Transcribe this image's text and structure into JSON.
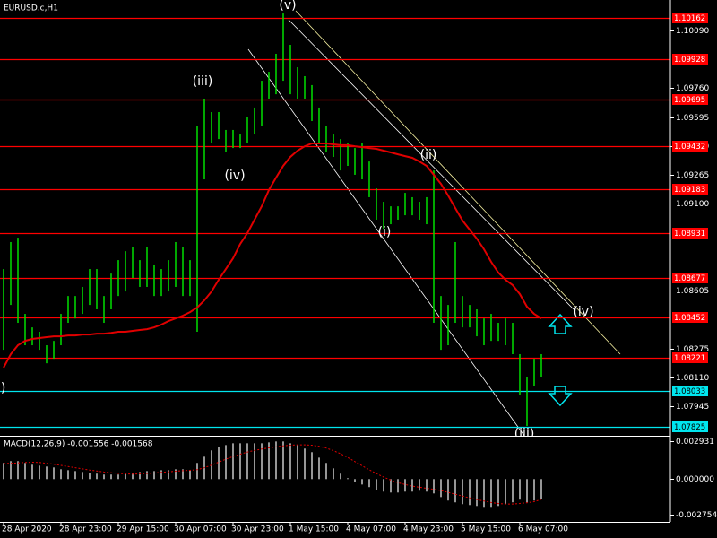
{
  "chart_data": [
    {
      "type": "hilo",
      "title": "EURUSD.c,H1",
      "color": "#00e000",
      "categories": [
        "28 Apr 2020",
        null,
        null,
        null,
        null,
        null,
        null,
        null,
        "28 Apr 23:00",
        null,
        null,
        null,
        null,
        null,
        null,
        null,
        "29 Apr 15:00",
        null,
        null,
        null,
        null,
        null,
        null,
        null,
        "30 Apr 07:00",
        null,
        null,
        null,
        null,
        null,
        null,
        null,
        "30 Apr 23:00",
        null,
        null,
        null,
        null,
        null,
        null,
        null,
        "1 May 15:00",
        null,
        null,
        null,
        null,
        null,
        null,
        null,
        "4 May 07:00",
        null,
        null,
        null,
        null,
        null,
        null,
        null,
        "4 May 23:00",
        null,
        null,
        null,
        null,
        null,
        null,
        null,
        "5 May 15:00",
        null,
        null,
        null,
        null,
        null,
        null,
        null,
        "6 May 07:00",
        null,
        null,
        null
      ],
      "high": [
        1.08728,
        1.08882,
        1.08907,
        1.08472,
        1.08395,
        1.0837,
        1.08293,
        1.08318,
        1.08472,
        1.08574,
        1.08574,
        1.08626,
        1.08728,
        1.08728,
        1.08574,
        1.08702,
        1.08779,
        1.0883,
        1.08856,
        1.08779,
        1.08856,
        1.08754,
        1.08728,
        1.08779,
        1.08882,
        1.08856,
        1.08779,
        1.09547,
        1.09701,
        1.09624,
        1.09624,
        1.09522,
        1.09522,
        1.09496,
        1.09598,
        1.0965,
        1.09803,
        1.09854,
        1.09957,
        1.10187,
        1.10008,
        1.0988,
        1.09829,
        1.09778,
        1.0965,
        1.09547,
        1.09496,
        1.0947,
        1.09445,
        1.09419,
        1.09445,
        1.09342,
        1.09189,
        1.09112,
        1.09086,
        1.09086,
        1.09163,
        1.09138,
        1.09112,
        1.09138,
        1.09291,
        1.08574,
        1.08523,
        1.08882,
        1.08574,
        1.08523,
        1.08498,
        1.08446,
        1.08472,
        1.08421,
        1.08446,
        1.08421,
        1.08242,
        1.08114,
        1.08216,
        1.08242
      ],
      "low": [
        1.08267,
        1.08523,
        1.08421,
        1.08293,
        1.08293,
        1.08267,
        1.0819,
        1.08216,
        1.08293,
        1.08421,
        1.08446,
        1.08472,
        1.08523,
        1.08498,
        1.08421,
        1.08498,
        1.08574,
        1.086,
        1.08677,
        1.08626,
        1.08626,
        1.08574,
        1.08574,
        1.086,
        1.08626,
        1.08574,
        1.08574,
        1.0837,
        1.0924,
        1.09445,
        1.0947,
        1.09394,
        1.09419,
        1.09419,
        1.09445,
        1.09496,
        1.09547,
        1.09701,
        1.09726,
        1.09803,
        1.09726,
        1.09701,
        1.09701,
        1.09573,
        1.09445,
        1.09394,
        1.09368,
        1.09291,
        1.09317,
        1.09266,
        1.0924,
        1.09138,
        1.0901,
        1.08958,
        1.08984,
        1.0901,
        1.09035,
        1.09035,
        1.0901,
        1.08984,
        1.08421,
        1.08267,
        1.08293,
        1.08421,
        1.08395,
        1.08395,
        1.08344,
        1.08293,
        1.08318,
        1.08318,
        1.08293,
        1.08242,
        1.08011,
        1.07832,
        1.08062,
        1.08114
      ],
      "lines": [
        {
          "color": "#e00000",
          "values": [
            1.08165,
            1.08242,
            1.08293,
            1.08318,
            1.08329,
            1.08334,
            1.08339,
            1.08344,
            1.08344,
            1.08349,
            1.08349,
            1.08354,
            1.08354,
            1.08359,
            1.08359,
            1.08364,
            1.0837,
            1.0837,
            1.08375,
            1.0838,
            1.08385,
            1.08395,
            1.08411,
            1.08431,
            1.08446,
            1.08462,
            1.08482,
            1.08508,
            1.08549,
            1.086,
            1.08667,
            1.08728,
            1.08789,
            1.08871,
            1.08933,
            1.0901,
            1.09086,
            1.09179,
            1.0925,
            1.09317,
            1.09368,
            1.09404,
            1.09429,
            1.09445,
            1.09445,
            1.09445,
            1.0944,
            1.09435,
            1.09435,
            1.09429,
            1.09424,
            1.09419,
            1.09414,
            1.09404,
            1.09394,
            1.09383,
            1.09373,
            1.09363,
            1.09342,
            1.09317,
            1.09266,
            1.09214,
            1.09148,
            1.09076,
            1.09005,
            1.08953,
            1.08902,
            1.08841,
            1.08769,
            1.08708,
            1.08667,
            1.08636,
            1.08585,
            1.08513,
            1.08472,
            1.08446
          ]
        }
      ],
      "levels": [
        {
          "value": 1.10162,
          "color": "#ff0000"
        },
        {
          "value": 1.09928,
          "color": "#ff0000"
        },
        {
          "value": 1.09695,
          "color": "#ff0000"
        },
        {
          "value": 1.09432,
          "color": "#ff0000"
        },
        {
          "value": 1.09183,
          "color": "#ff0000"
        },
        {
          "value": 1.08931,
          "color": "#ff0000"
        },
        {
          "value": 1.08677,
          "color": "#ff0000"
        },
        {
          "value": 1.08452,
          "color": "#ff0000"
        },
        {
          "value": 1.08221,
          "color": "#ff0000"
        },
        {
          "value": 1.08033,
          "color": "#00e5ee"
        },
        {
          "value": 1.07825,
          "color": "#00e5ee"
        }
      ],
      "annotations": [
        "(v)",
        "(iii)",
        "(iv)",
        "(ii)",
        "(i)",
        "(iv)",
        "(iii)",
        "i)"
      ],
      "ylim": [
        1.07771,
        1.10264
      ],
      "yticks": [
        {
          "value": 1.1009,
          "label": "1.10090"
        },
        {
          "value": 1.0976,
          "label": "1.09760"
        },
        1.09595,
        {
          "value": 1.0943,
          "label": "1.09430"
        },
        1.09265,
        {
          "value": 1.091,
          "label": "1.09100"
        },
        1.08605,
        1.08275,
        {
          "value": 1.0811,
          "label": "1.08110"
        },
        1.07945
      ]
    },
    {
      "type": "macd",
      "title": "MACD(12,26,9) -0.001556 -0.001568",
      "color": "#c8c8c8",
      "values": [
        0.00125,
        0.00139,
        0.00139,
        0.00125,
        0.00111,
        0.00104,
        0.00097,
        0.0009,
        0.00076,
        0.00069,
        0.00062,
        0.00055,
        0.00049,
        0.00042,
        0.00035,
        0.00035,
        0.00035,
        0.00042,
        0.00049,
        0.00055,
        0.00062,
        0.00062,
        0.00069,
        0.00069,
        0.00076,
        0.00076,
        0.00069,
        0.00125,
        0.00173,
        0.00222,
        0.00249,
        0.00263,
        0.00277,
        0.00277,
        0.00277,
        0.00277,
        0.00277,
        0.00284,
        0.00291,
        0.00291,
        0.00277,
        0.00263,
        0.00236,
        0.00208,
        0.00166,
        0.00125,
        0.00083,
        0.00042,
        7e-05,
        -0.00021,
        -0.00042,
        -0.00062,
        -0.00083,
        -0.00097,
        -0.00104,
        -0.00104,
        -0.00097,
        -0.00097,
        -0.0009,
        -0.00097,
        -0.00111,
        -0.00139,
        -0.00166,
        -0.0018,
        -0.00194,
        -0.00201,
        -0.00208,
        -0.00215,
        -0.00215,
        -0.00208,
        -0.00194,
        -0.0018,
        -0.00159,
        -0.0018,
        -0.00166,
        -0.00156
      ],
      "signal": {
        "color": "#e00000",
        "values": [
          0.0012,
          0.00122,
          0.00125,
          0.00128,
          0.0013,
          0.00128,
          0.00122,
          0.00115,
          0.00106,
          0.00097,
          0.00088,
          0.00079,
          0.0007,
          0.00062,
          0.00055,
          0.00049,
          0.00044,
          0.0004,
          0.00039,
          0.0004,
          0.00043,
          0.00047,
          0.00052,
          0.00056,
          0.00061,
          0.00065,
          0.00068,
          0.00073,
          0.00088,
          0.00108,
          0.00131,
          0.00154,
          0.00175,
          0.00193,
          0.00209,
          0.00222,
          0.00232,
          0.00241,
          0.00249,
          0.00257,
          0.00262,
          0.00265,
          0.00265,
          0.00262,
          0.00254,
          0.0024,
          0.0022,
          0.00196,
          0.00167,
          0.00135,
          0.00103,
          0.00072,
          0.00042,
          0.00016,
          -8e-05,
          -0.00027,
          -0.00042,
          -0.00054,
          -0.00063,
          -0.00071,
          -0.00079,
          -0.00089,
          -0.00103,
          -0.00117,
          -0.00131,
          -0.00146,
          -0.00158,
          -0.0017,
          -0.00181,
          -0.00189,
          -0.00193,
          -0.00193,
          -0.00189,
          -0.00183,
          -0.00175,
          -0.00157
        ]
      },
      "ylim": [
        -0.00317,
        0.00321
      ],
      "yticks": [
        0.002931,
        {
          "value": 0,
          "label": "0.000000"
        },
        -0.002754
      ]
    }
  ]
}
